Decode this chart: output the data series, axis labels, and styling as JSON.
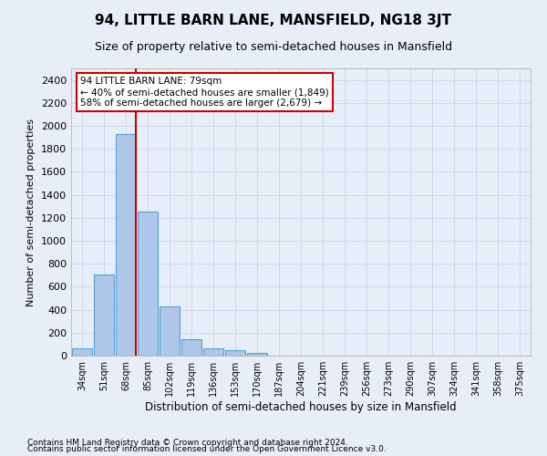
{
  "title": "94, LITTLE BARN LANE, MANSFIELD, NG18 3JT",
  "subtitle": "Size of property relative to semi-detached houses in Mansfield",
  "xlabel": "Distribution of semi-detached houses by size in Mansfield",
  "ylabel": "Number of semi-detached properties",
  "categories": [
    "34sqm",
    "51sqm",
    "68sqm",
    "85sqm",
    "102sqm",
    "119sqm",
    "136sqm",
    "153sqm",
    "170sqm",
    "187sqm",
    "204sqm",
    "221sqm",
    "239sqm",
    "256sqm",
    "273sqm",
    "290sqm",
    "307sqm",
    "324sqm",
    "341sqm",
    "358sqm",
    "375sqm"
  ],
  "values": [
    65,
    710,
    1930,
    1255,
    430,
    145,
    60,
    50,
    25,
    0,
    0,
    0,
    0,
    0,
    0,
    0,
    0,
    0,
    0,
    0,
    0
  ],
  "bar_color": "#aec6e8",
  "bar_edge_color": "#5a9fd4",
  "vline_bin_index": 2,
  "vline_color": "#cc0000",
  "annotation_text": "94 LITTLE BARN LANE: 79sqm\n← 40% of semi-detached houses are smaller (1,849)\n58% of semi-detached houses are larger (2,679) →",
  "annotation_box_color": "#ffffff",
  "annotation_box_edge": "#cc0000",
  "ylim": [
    0,
    2500
  ],
  "yticks": [
    0,
    200,
    400,
    600,
    800,
    1000,
    1200,
    1400,
    1600,
    1800,
    2000,
    2200,
    2400
  ],
  "grid_color": "#d0d8e8",
  "background_color": "#e8eef8",
  "footnote1": "Contains HM Land Registry data © Crown copyright and database right 2024.",
  "footnote2": "Contains public sector information licensed under the Open Government Licence v3.0."
}
